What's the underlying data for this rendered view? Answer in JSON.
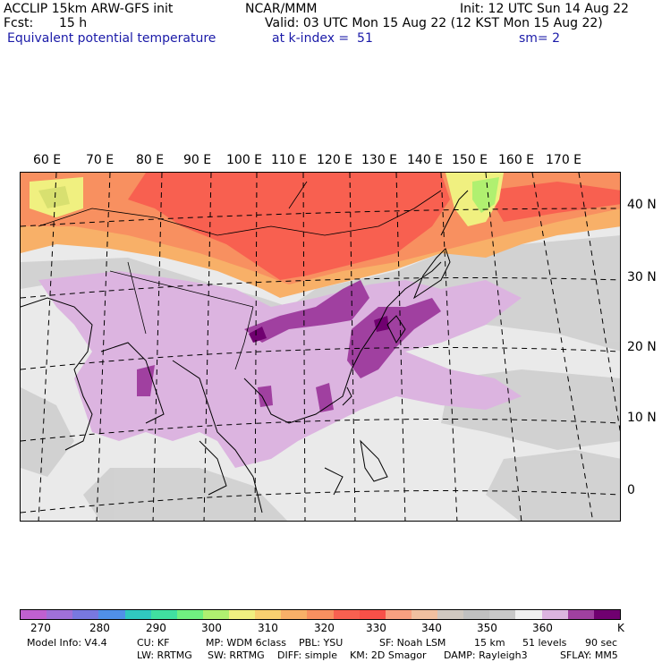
{
  "header": {
    "model": "ACCLIP 15km ARW-GFS init",
    "center": "NCAR/MMM",
    "init": "Init: 12 UTC Sun 14 Aug 22",
    "fcst_label": "Fcst:",
    "fcst_value": "15 h",
    "valid": "Valid: 03 UTC Mon 15 Aug 22 (12 KST Mon 15 Aug 22)",
    "field": "Equivalent potential temperature",
    "level": "at k-index =  51",
    "smooth": "sm= 2"
  },
  "map": {
    "lon_labels": [
      "60 E",
      "70 E",
      "80 E",
      "90 E",
      "100 E",
      "110 E",
      "120 E",
      "130 E",
      "140 E",
      "150 E",
      "160 E",
      "170 E"
    ],
    "lat_labels": [
      "40 N",
      "30 N",
      "20 N",
      "10 N",
      "0"
    ]
  },
  "colorbar": {
    "colors": [
      "#c060d0",
      "#a070d8",
      "#7878e0",
      "#5090e8",
      "#30c8c0",
      "#40e0a0",
      "#70f080",
      "#b0f070",
      "#f0f080",
      "#f8d070",
      "#f8b068",
      "#f89060",
      "#f86050",
      "#f85048",
      "#f8a080",
      "#f0c0a0",
      "#d0c8c0",
      "#c0c0c0",
      "#c8c8c8",
      "#f0f0f0",
      "#dcb4e0",
      "#a040a0",
      "#700070"
    ],
    "labels": [
      "270",
      "280",
      "290",
      "300",
      "310",
      "320",
      "330",
      "340",
      "350",
      "360"
    ],
    "unit": "K"
  },
  "footer": {
    "line1": [
      "Model Info: V4.4",
      "CU: KF",
      "MP: WDM 6class",
      "PBL: YSU",
      "SF: Noah LSM",
      "15 km",
      "51 levels",
      "90 sec"
    ],
    "line2": [
      "LW: RRTMG",
      "SW: RRTMG",
      "DIFF: simple",
      "KM: 2D Smagor",
      "DAMP: Rayleigh3",
      "SFLAY: MM5"
    ]
  }
}
